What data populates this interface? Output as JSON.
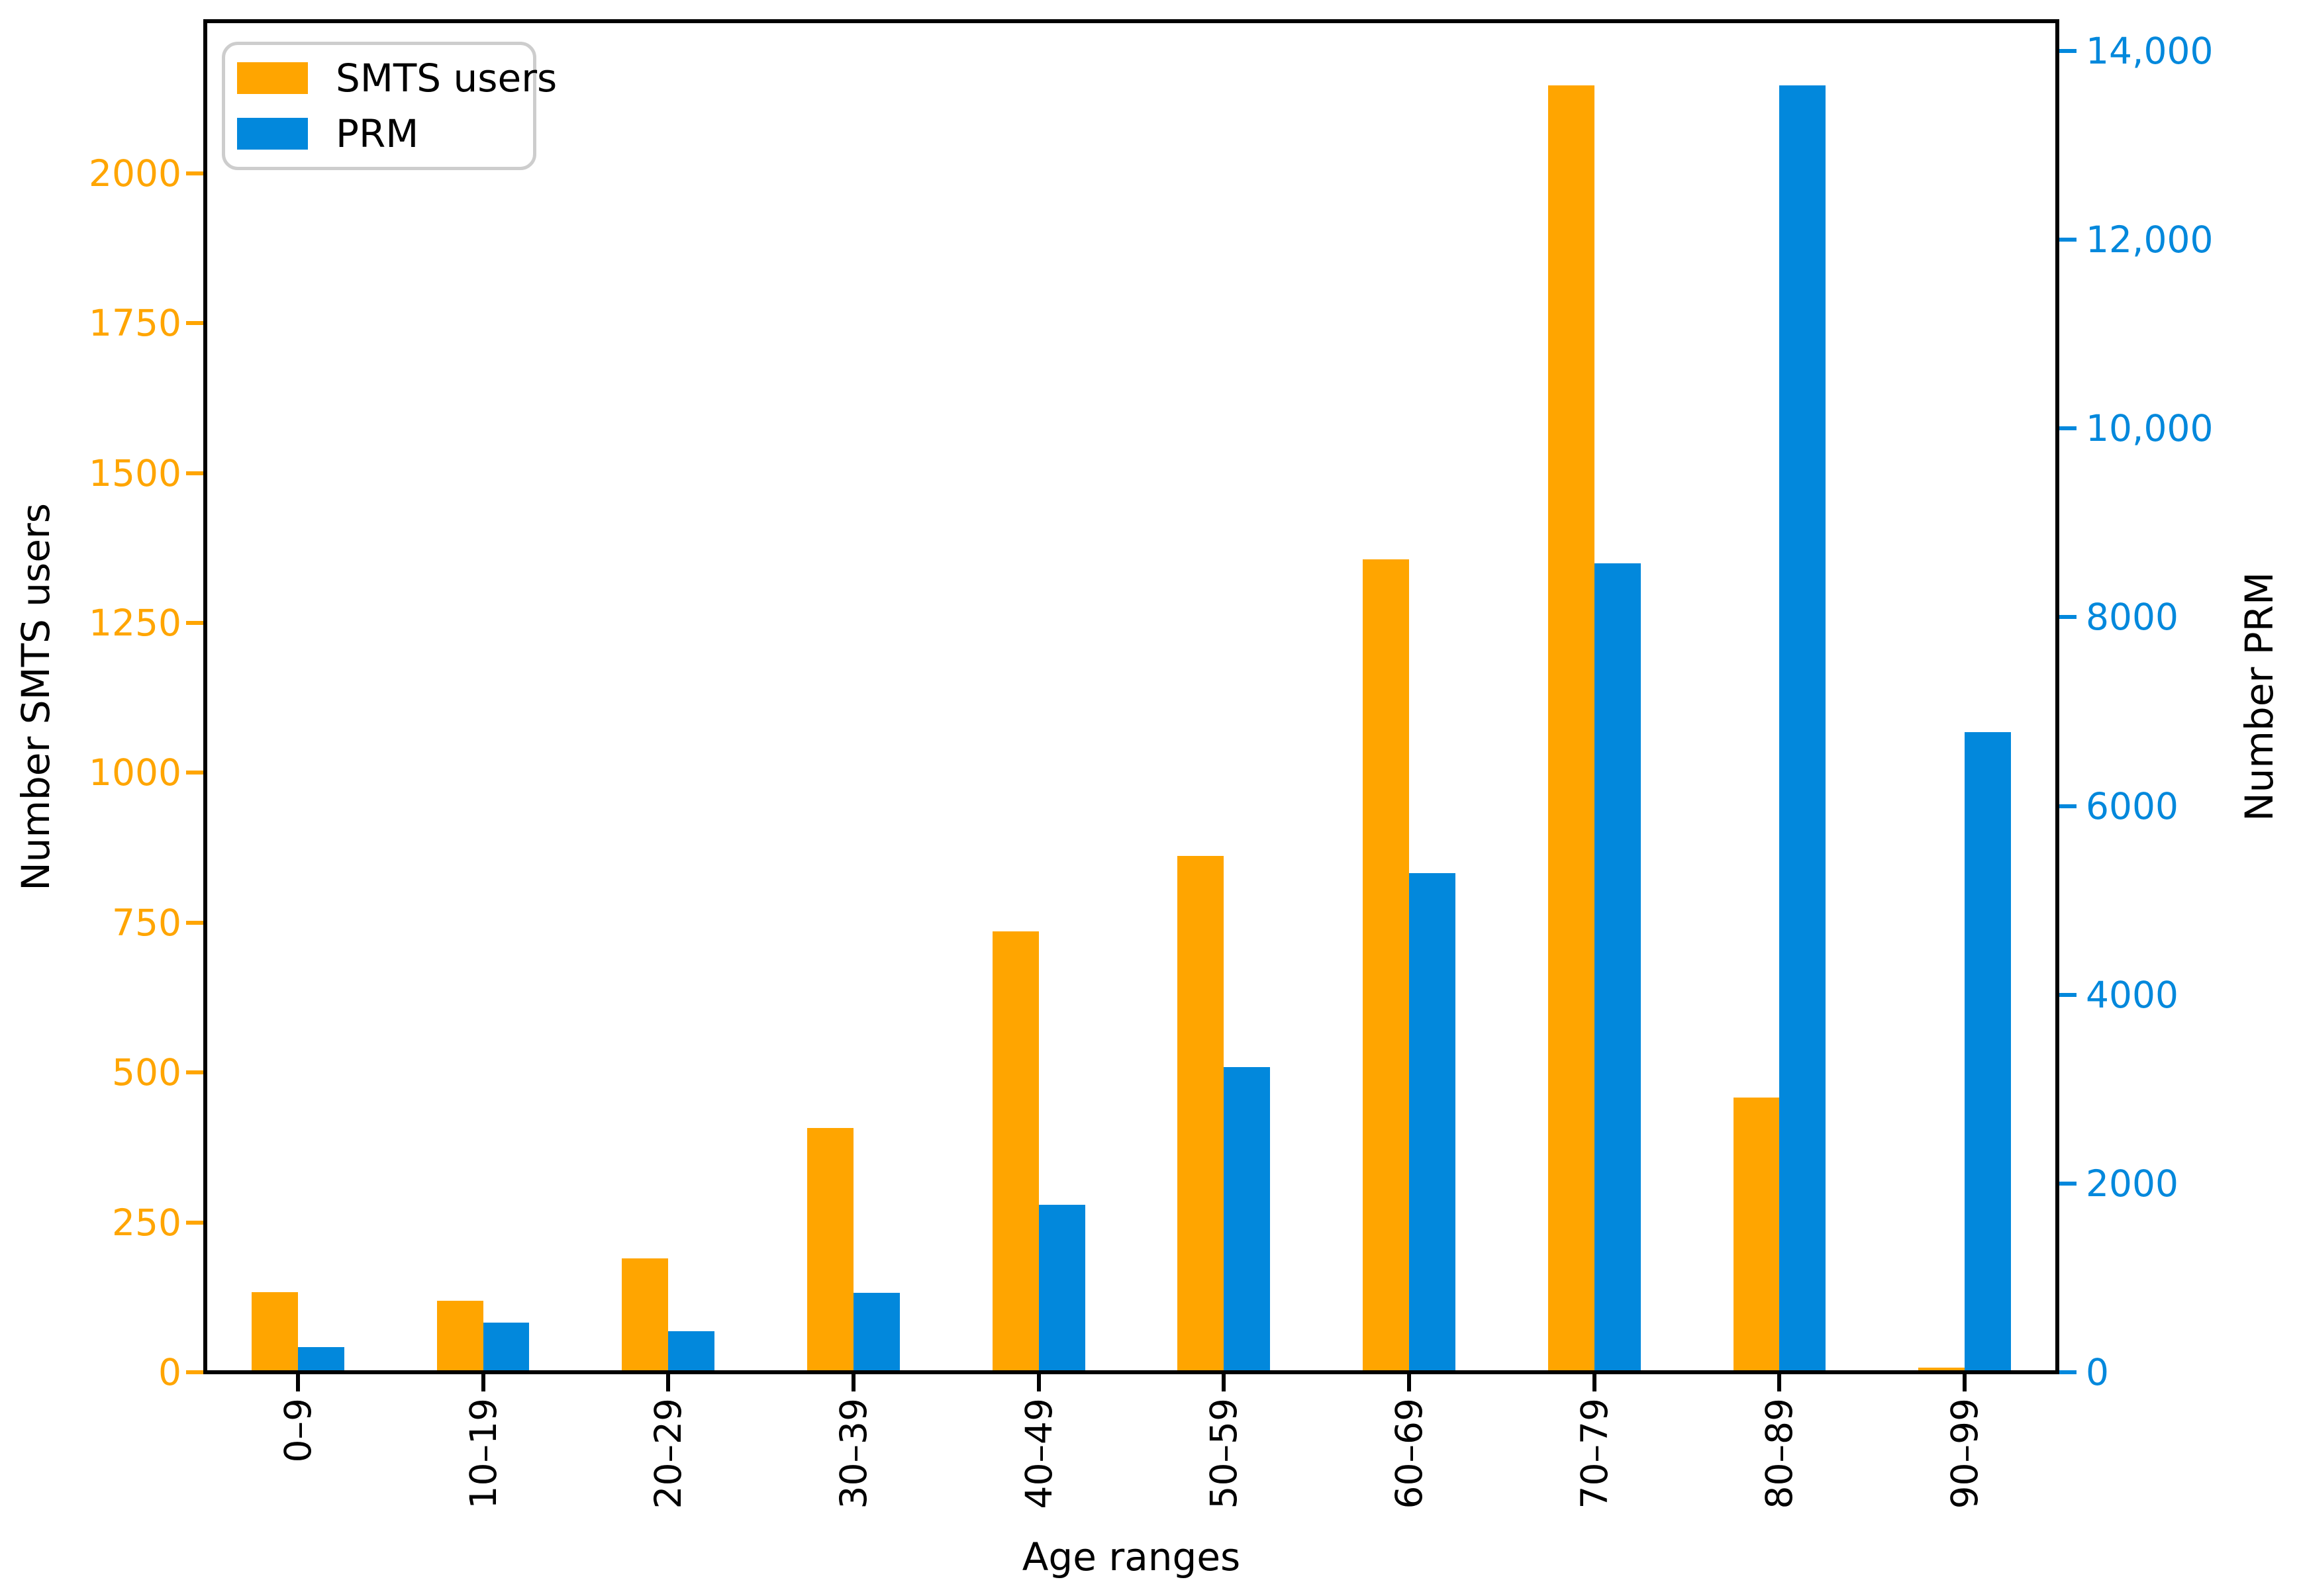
{
  "chart_data": {
    "type": "bar",
    "categories": [
      "0–9",
      "10–19",
      "20–29",
      "30–39",
      "40–49",
      "50–59",
      "60–69",
      "70–79",
      "80–89",
      "90–99"
    ],
    "series": [
      {
        "name": "SMTS users",
        "axis": "left",
        "color": "#FFA500",
        "values": [
          134,
          119,
          190,
          408,
          735,
          861,
          1356,
          2147,
          458,
          8
        ]
      },
      {
        "name": "PRM",
        "axis": "right",
        "color": "#0288DC",
        "values": [
          266,
          528,
          436,
          841,
          1774,
          3235,
          5286,
          8570,
          13633,
          6782
        ]
      }
    ],
    "xlabel": "Age ranges",
    "ylabel_left": "Number SMTS users",
    "ylabel_right": "Number PRM",
    "ylim_left": [
      0,
      2254
    ],
    "ylim_right": [
      0,
      14316
    ],
    "yticks_left": {
      "values": [
        0,
        250,
        500,
        750,
        1000,
        1250,
        1500,
        1750,
        2000
      ],
      "labels": [
        "0",
        "250",
        "500",
        "750",
        "1000",
        "1250",
        "1500",
        "1750",
        "2000"
      ],
      "color": "#FFA500"
    },
    "yticks_right": {
      "values": [
        0,
        2000,
        4000,
        6000,
        8000,
        10000,
        12000,
        14000
      ],
      "labels": [
        "0",
        "2000",
        "4000",
        "6000",
        "8000",
        "10,000",
        "12,000",
        "14,000"
      ],
      "color": "#0288DC"
    },
    "grid": false,
    "legend": {
      "position": "upper left",
      "entries": [
        "SMTS users",
        "PRM"
      ]
    }
  }
}
